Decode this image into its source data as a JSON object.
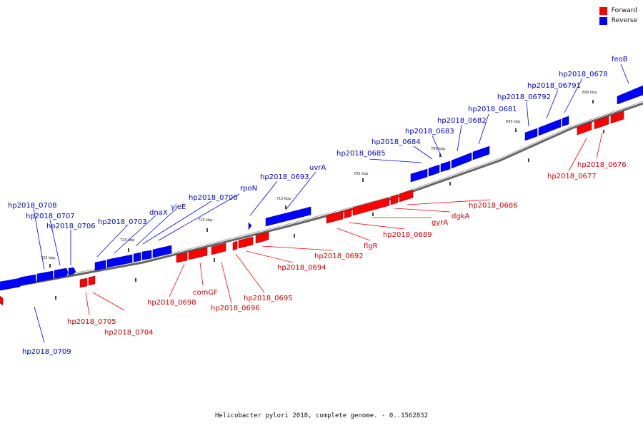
{
  "legend": {
    "forward": {
      "label": "Forward",
      "color": "#ff0000"
    },
    "reverse": {
      "label": "Reverse",
      "color": "#0000ff"
    }
  },
  "caption": "Helicobacter pylori 2018, complete genome. - 0..1562832",
  "scale_labels": [
    "690 kbp",
    "695 kbp",
    "700 kbp",
    "705 kbp",
    "710 kbp",
    "715 kbp",
    "720 kbp",
    "725 kbp"
  ],
  "reverse_genes": [
    "hp2018_0708",
    "hp2018_0707",
    "hp2018_0706",
    "hp2018_0703",
    "dnaX",
    "yjeE",
    "hp2018_0700",
    "rpoN",
    "hp2018_0693",
    "uvrA",
    "hp2018_0685",
    "hp2018_0684",
    "hp2018_0683",
    "hp2018_0682",
    "hp2018_0681",
    "hp2018_06792",
    "hp2018_06791",
    "hp2018_0678",
    "feoB",
    "hp2018_0709"
  ],
  "forward_genes": [
    "hp2018_0705",
    "hp2018_0704",
    "hp2018_0698",
    "comGF",
    "hp2018_0696",
    "hp2018_0695",
    "hp2018_0694",
    "hp2018_0692",
    "flgR",
    "hp2018_0689",
    "gyrA",
    "dgkA",
    "hp2018_0686",
    "hp2018_0677",
    "hp2018_0676"
  ]
}
